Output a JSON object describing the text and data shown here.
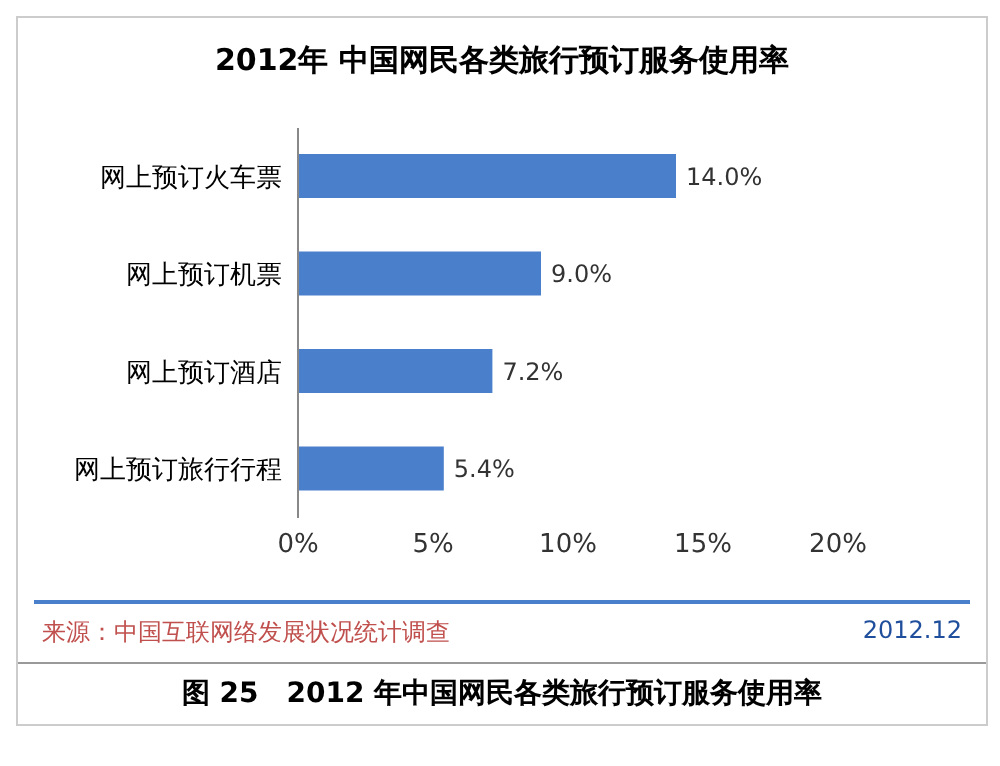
{
  "chart_data": {
    "type": "bar",
    "orientation": "horizontal",
    "title": "2012年 中国网民各类旅行预订服务使用率",
    "categories": [
      "网上预订火车票",
      "网上预订机票",
      "网上预订酒店",
      "网上预订旅行行程"
    ],
    "values": [
      14.0,
      9.0,
      7.2,
      5.4
    ],
    "value_labels": [
      "14.0%",
      "9.0%",
      "7.2%",
      "5.4%"
    ],
    "color": "#4a7fcc",
    "xlim": [
      0,
      20
    ],
    "xticks": [
      {
        "value": 0,
        "label": "0%"
      },
      {
        "value": 5,
        "label": "5%"
      },
      {
        "value": 10,
        "label": "10%"
      },
      {
        "value": 15,
        "label": "15%"
      },
      {
        "value": 20,
        "label": "20%"
      }
    ],
    "annotations": [
      "来源：中国互联网络发展状况统计调查",
      "2012.12",
      "图 25　2012 年中国网民各类旅行预订服务使用率"
    ]
  }
}
